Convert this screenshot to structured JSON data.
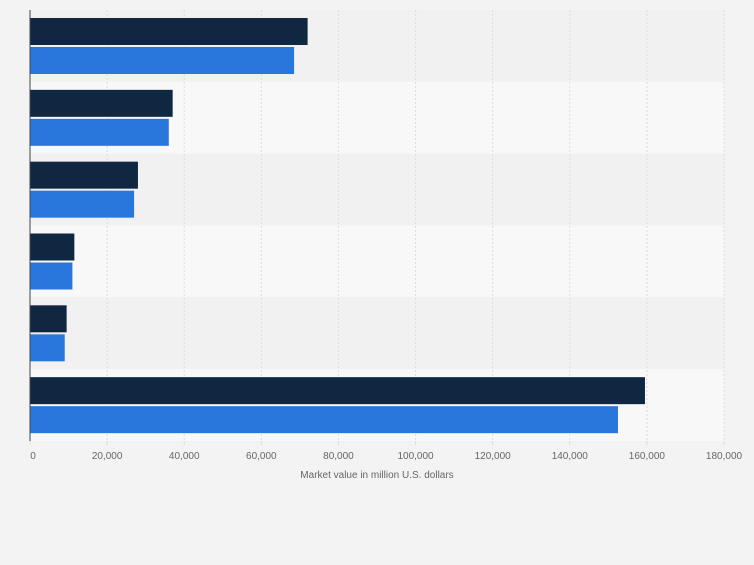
{
  "chart_data": {
    "type": "bar",
    "orientation": "horizontal",
    "categories": [
      "",
      "",
      "",
      "",
      "",
      ""
    ],
    "series": [
      {
        "values": [
          72000,
          37000,
          28000,
          11500,
          9500,
          159500
        ]
      },
      {
        "values": [
          68500,
          36000,
          27000,
          11000,
          9000,
          152500
        ]
      }
    ],
    "xlabel": "Market value in million U.S. dollars",
    "xlim": [
      0,
      180000
    ],
    "xticks": [
      0,
      20000,
      40000,
      60000,
      80000,
      100000,
      120000,
      140000,
      160000,
      180000
    ],
    "xtick_labels": [
      "0",
      "20,000",
      "40,000",
      "60,000",
      "80,000",
      "100,000",
      "120,000",
      "140,000",
      "160,000",
      "180,000"
    ],
    "grid": true,
    "colors": {
      "series": [
        "#0f2741",
        "#2977dc"
      ],
      "band_dark": "#f1f1f1",
      "band_light": "#f8f8f8",
      "grid": "#dcdcdc",
      "axis": "#444444",
      "tick_text": "#666666"
    }
  }
}
